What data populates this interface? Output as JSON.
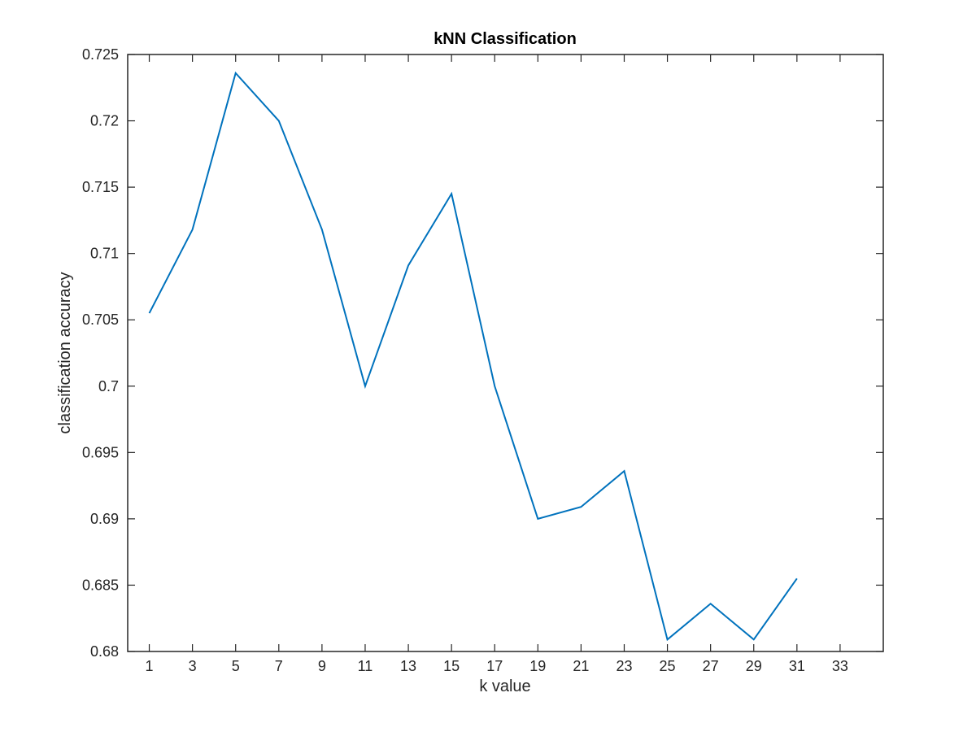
{
  "chart_data": {
    "type": "line",
    "title": "kNN Classification",
    "xlabel": "k value",
    "ylabel": "classification accuracy",
    "xlim": [
      0,
      35
    ],
    "ylim": [
      0.68,
      0.725
    ],
    "xticks": [
      1,
      3,
      5,
      7,
      9,
      11,
      13,
      15,
      17,
      19,
      21,
      23,
      25,
      27,
      29,
      31,
      33
    ],
    "xtick_labels": [
      "1",
      "3",
      "5",
      "7",
      "9",
      "11",
      "13",
      "15",
      "17",
      "19",
      "21",
      "23",
      "25",
      "27",
      "29",
      "31",
      "33"
    ],
    "yticks": [
      0.68,
      0.685,
      0.69,
      0.695,
      0.7,
      0.705,
      0.71,
      0.715,
      0.72,
      0.725
    ],
    "ytick_labels": [
      "0.68",
      "0.685",
      "0.69",
      "0.695",
      "0.7",
      "0.705",
      "0.71",
      "0.715",
      "0.72",
      "0.725"
    ],
    "grid": false,
    "line_color": "#0072BD",
    "axis_color": "#262626",
    "series": [
      {
        "x": [
          1,
          3,
          5,
          7,
          9,
          11,
          13,
          15,
          17,
          19,
          21,
          23,
          25,
          27,
          29,
          31
        ],
        "values": [
          0.7055,
          0.7118,
          0.7236,
          0.72,
          0.7118,
          0.7,
          0.7091,
          0.7145,
          0.7,
          0.69,
          0.6909,
          0.6936,
          0.6809,
          0.6836,
          0.6809,
          0.6855
        ]
      }
    ]
  }
}
